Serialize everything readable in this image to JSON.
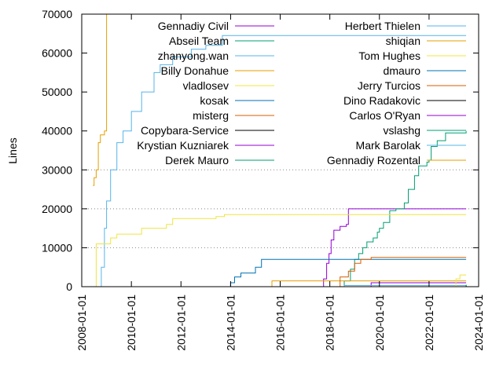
{
  "chart_data": {
    "type": "line",
    "title": "",
    "xlabel": "",
    "ylabel": "Lines",
    "xlim": [
      "2008-01-01",
      "2024-01-01"
    ],
    "ylim": [
      0,
      70000
    ],
    "x_ticks": [
      "2008-01-01",
      "2010-01-01",
      "2012-01-01",
      "2014-01-01",
      "2016-01-01",
      "2018-01-01",
      "2020-01-01",
      "2022-01-01",
      "2024-01-01"
    ],
    "y_ticks": [
      0,
      10000,
      20000,
      30000,
      40000,
      50000,
      60000,
      70000
    ],
    "y_tick_labels": [
      "0",
      "10000",
      "20000",
      "30000",
      "40000",
      "50000",
      "60000",
      "70000"
    ],
    "grid": "horizontal dotted at 10000, 20000, 30000",
    "legend_position": "top",
    "series": [
      {
        "name": "Gennadiy Civil",
        "color": "#9400d3",
        "points": [
          [
            "2017-09-01",
            0
          ],
          [
            "2017-10-01",
            2000
          ],
          [
            "2017-11-15",
            6000
          ],
          [
            "2017-12-20",
            8500
          ],
          [
            "2018-01-20",
            12000
          ],
          [
            "2018-03-01",
            14500
          ],
          [
            "2018-06-01",
            15500
          ],
          [
            "2018-09-01",
            16000
          ],
          [
            "2018-10-01",
            20000
          ],
          [
            "2023-07-01",
            20000
          ]
        ]
      },
      {
        "name": "Abseil Team",
        "color": "#009e73",
        "points": [
          [
            "2018-06-01",
            0
          ],
          [
            "2018-08-01",
            1500
          ],
          [
            "2018-11-01",
            4500
          ],
          [
            "2019-01-01",
            7000
          ],
          [
            "2019-03-01",
            8500
          ],
          [
            "2019-05-01",
            10000
          ],
          [
            "2019-07-01",
            11500
          ],
          [
            "2019-10-01",
            12500
          ],
          [
            "2019-12-01",
            14000
          ],
          [
            "2020-01-01",
            15000
          ],
          [
            "2020-03-01",
            16500
          ],
          [
            "2020-06-01",
            19500
          ],
          [
            "2020-09-01",
            20000
          ],
          [
            "2021-01-01",
            21500
          ],
          [
            "2021-03-01",
            25000
          ],
          [
            "2021-06-01",
            28500
          ],
          [
            "2021-08-01",
            31000
          ],
          [
            "2021-12-01",
            32000
          ],
          [
            "2022-01-01",
            32500
          ],
          [
            "2022-02-01",
            36000
          ],
          [
            "2022-05-01",
            37500
          ],
          [
            "2022-09-01",
            39500
          ],
          [
            "2023-07-01",
            40000
          ]
        ]
      },
      {
        "name": "zhanyong.wan",
        "color": "#56b4e9",
        "points": [
          [
            "2008-09-01",
            0
          ],
          [
            "2008-10-15",
            5000
          ],
          [
            "2008-12-01",
            15000
          ],
          [
            "2009-01-01",
            22000
          ],
          [
            "2009-03-01",
            30000
          ],
          [
            "2009-06-01",
            37000
          ],
          [
            "2009-09-01",
            40000
          ],
          [
            "2010-01-01",
            45000
          ],
          [
            "2010-06-01",
            50000
          ],
          [
            "2010-12-01",
            55000
          ],
          [
            "2011-03-01",
            57000
          ],
          [
            "2011-09-01",
            59000
          ],
          [
            "2012-06-01",
            61000
          ],
          [
            "2013-01-01",
            62000
          ],
          [
            "2013-09-01",
            64500
          ],
          [
            "2023-07-01",
            64500
          ]
        ]
      },
      {
        "name": "Billy Donahue",
        "color": "#e69f00",
        "points": [
          [
            "2015-08-01",
            0
          ],
          [
            "2015-09-01",
            1500
          ],
          [
            "2023-07-01",
            1500
          ]
        ]
      },
      {
        "name": "vladlosev",
        "color": "#f0e442",
        "points": [
          [
            "2008-07-01",
            0
          ],
          [
            "2008-08-01",
            11000
          ],
          [
            "2009-02-01",
            11000
          ],
          [
            "2009-03-01",
            12500
          ],
          [
            "2009-06-01",
            13500
          ],
          [
            "2010-06-01",
            15000
          ],
          [
            "2011-06-01",
            16000
          ],
          [
            "2011-09-01",
            17500
          ],
          [
            "2013-06-01",
            18000
          ],
          [
            "2013-10-01",
            18500
          ],
          [
            "2023-07-01",
            18500
          ]
        ]
      },
      {
        "name": "kosak",
        "color": "#0072b2",
        "points": [
          [
            "2013-09-01",
            0
          ],
          [
            "2014-01-01",
            1000
          ],
          [
            "2014-03-01",
            2500
          ],
          [
            "2014-06-01",
            3500
          ],
          [
            "2015-01-01",
            5000
          ],
          [
            "2015-04-01",
            7000
          ],
          [
            "2023-07-01",
            7000
          ]
        ]
      },
      {
        "name": "misterg",
        "color": "#d55e00",
        "points": [
          [
            "2018-01-01",
            0
          ],
          [
            "2018-06-01",
            2500
          ],
          [
            "2018-10-01",
            4000
          ],
          [
            "2019-01-01",
            6000
          ],
          [
            "2019-04-01",
            7000
          ],
          [
            "2019-09-01",
            7500
          ],
          [
            "2023-07-01",
            7500
          ]
        ]
      },
      {
        "name": "Copybara-Service",
        "color": "#000000",
        "points": [
          [
            "2018-03-01",
            0
          ],
          [
            "2023-07-01",
            400
          ]
        ]
      },
      {
        "name": "Krystian Kuzniarek",
        "color": "#9400d3",
        "points": [
          [
            "2019-07-01",
            0
          ],
          [
            "2019-09-01",
            1000
          ],
          [
            "2023-07-01",
            1000
          ]
        ]
      },
      {
        "name": "Derek Mauro",
        "color": "#009e73",
        "points": [
          [
            "2019-01-01",
            0
          ],
          [
            "2023-07-01",
            500
          ]
        ]
      },
      {
        "name": "Herbert Thielen",
        "color": "#56b4e9",
        "points": [
          [
            "2018-06-01",
            0
          ],
          [
            "2018-08-01",
            300
          ],
          [
            "2023-07-01",
            300
          ]
        ]
      },
      {
        "name": "shiqian",
        "color": "#e69f00",
        "points": [
          [
            "2008-06-15",
            26000
          ],
          [
            "2008-07-01",
            28000
          ],
          [
            "2008-08-01",
            30000
          ],
          [
            "2008-09-01",
            37000
          ],
          [
            "2008-10-01",
            39000
          ],
          [
            "2008-12-01",
            40000
          ],
          [
            "2009-01-01",
            70000
          ],
          [
            "2023-07-01",
            70000
          ]
        ]
      },
      {
        "name": "Tom Hughes",
        "color": "#f0e442",
        "points": [
          [
            "2023-01-01",
            0
          ],
          [
            "2023-02-01",
            2000
          ],
          [
            "2023-04-01",
            3000
          ],
          [
            "2023-07-01",
            3000
          ]
        ]
      },
      {
        "name": "dmauro",
        "color": "#0072b2",
        "points": [
          [
            "2019-06-01",
            0
          ],
          [
            "2023-07-01",
            200
          ]
        ]
      },
      {
        "name": "Jerry Turcios",
        "color": "#d55e00",
        "points": [
          [
            "2021-01-01",
            0
          ],
          [
            "2023-07-01",
            100
          ]
        ]
      },
      {
        "name": "Dino Radakovic",
        "color": "#000000",
        "points": [
          [
            "2022-06-01",
            0
          ],
          [
            "2023-07-01",
            200
          ]
        ]
      },
      {
        "name": "Carlos O'Ryan",
        "color": "#9400d3",
        "points": [
          [
            "2020-01-01",
            0
          ],
          [
            "2023-07-01",
            100
          ]
        ]
      },
      {
        "name": "vslashg",
        "color": "#009e73",
        "points": [
          [
            "2018-09-01",
            0
          ],
          [
            "2023-07-01",
            400
          ]
        ]
      },
      {
        "name": "Mark Barolak",
        "color": "#56b4e9",
        "points": [
          [
            "2020-06-01",
            0
          ],
          [
            "2023-07-01",
            100
          ]
        ]
      },
      {
        "name": "Gennadiy Rozental",
        "color": "#e69f00",
        "points": [
          [
            "2018-01-01",
            0
          ],
          [
            "2023-07-01",
            100
          ]
        ]
      }
    ]
  }
}
